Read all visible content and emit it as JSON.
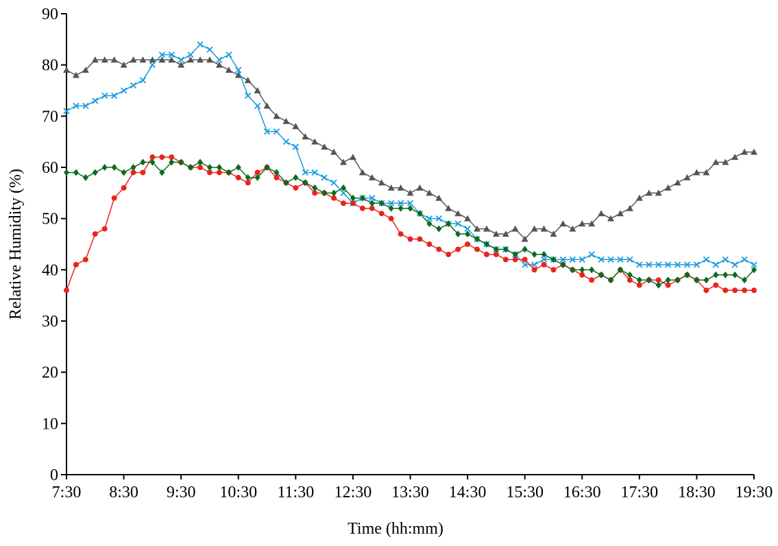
{
  "chart_data": {
    "type": "line",
    "xlabel": "Time (hh:mm)",
    "ylabel": "Relative Humidity (%)",
    "categories": [
      "7:30",
      null,
      null,
      null,
      null,
      null,
      "8:30",
      null,
      null,
      null,
      null,
      null,
      "9:30",
      null,
      null,
      null,
      null,
      null,
      "10:30",
      null,
      null,
      null,
      null,
      null,
      "11:30",
      null,
      null,
      null,
      null,
      null,
      "12:30",
      null,
      null,
      null,
      null,
      null,
      "13:30",
      null,
      null,
      null,
      null,
      null,
      "14:30",
      null,
      null,
      null,
      null,
      null,
      "15:30",
      null,
      null,
      null,
      null,
      null,
      "16:30",
      null,
      null,
      null,
      null,
      null,
      "17:30",
      null,
      null,
      null,
      null,
      null,
      "18:30",
      null,
      null,
      null,
      null,
      null,
      "19:30"
    ],
    "ylim": [
      0,
      90
    ],
    "yticks": [
      0,
      10,
      20,
      30,
      40,
      50,
      60,
      70,
      80,
      90
    ],
    "grid": false,
    "series": [
      {
        "color": "#555555",
        "marker": "triangle",
        "values": [
          79,
          78,
          79,
          81,
          81,
          81,
          80,
          81,
          81,
          81,
          81,
          81,
          80,
          81,
          81,
          81,
          80,
          79,
          78,
          77,
          75,
          72,
          70,
          69,
          68,
          66,
          65,
          64,
          63,
          61,
          62,
          59,
          58,
          57,
          56,
          56,
          55,
          56,
          55,
          54,
          52,
          51,
          50,
          48,
          48,
          47,
          47,
          48,
          46,
          48,
          48,
          47,
          49,
          48,
          49,
          49,
          51,
          50,
          51,
          52,
          54,
          55,
          55,
          56,
          57,
          58,
          59,
          59,
          61,
          61,
          62,
          63,
          63
        ]
      },
      {
        "color": "#1a9be0",
        "marker": "cross",
        "values": [
          71,
          72,
          72,
          73,
          74,
          74,
          75,
          76,
          77,
          80,
          82,
          82,
          81,
          82,
          84,
          83,
          81,
          82,
          79,
          74,
          72,
          67,
          67,
          65,
          64,
          59,
          59,
          58,
          57,
          55,
          53,
          54,
          54,
          53,
          53,
          53,
          53,
          51,
          50,
          50,
          49,
          49,
          48,
          46,
          45,
          44,
          44,
          43,
          41,
          41,
          42,
          42,
          42,
          42,
          42,
          43,
          42,
          42,
          42,
          42,
          41,
          41,
          41,
          41,
          41,
          41,
          41,
          42,
          41,
          42,
          41,
          42,
          41
        ]
      },
      {
        "color": "#e8251c",
        "marker": "circle",
        "values": [
          36,
          41,
          42,
          47,
          48,
          54,
          56,
          59,
          59,
          62,
          62,
          62,
          61,
          60,
          60,
          59,
          59,
          59,
          58,
          57,
          59,
          60,
          58,
          57,
          56,
          57,
          55,
          55,
          54,
          53,
          53,
          52,
          52,
          51,
          50,
          47,
          46,
          46,
          45,
          44,
          43,
          44,
          45,
          44,
          43,
          43,
          42,
          42,
          42,
          40,
          41,
          40,
          41,
          40,
          39,
          38,
          39,
          38,
          40,
          38,
          37,
          38,
          38,
          37,
          38,
          39,
          38,
          36,
          37,
          36,
          36,
          36,
          36
        ]
      },
      {
        "color": "#0b6b1e",
        "marker": "diamond",
        "values": [
          59,
          59,
          58,
          59,
          60,
          60,
          59,
          60,
          61,
          61,
          59,
          61,
          61,
          60,
          61,
          60,
          60,
          59,
          60,
          58,
          58,
          60,
          59,
          57,
          58,
          57,
          56,
          55,
          55,
          56,
          54,
          54,
          53,
          53,
          52,
          52,
          52,
          51,
          49,
          48,
          49,
          47,
          47,
          46,
          45,
          44,
          44,
          43,
          44,
          43,
          43,
          42,
          41,
          40,
          40,
          40,
          39,
          38,
          40,
          39,
          38,
          38,
          37,
          38,
          38,
          39,
          38,
          38,
          39,
          39,
          39,
          38,
          40
        ]
      }
    ]
  }
}
